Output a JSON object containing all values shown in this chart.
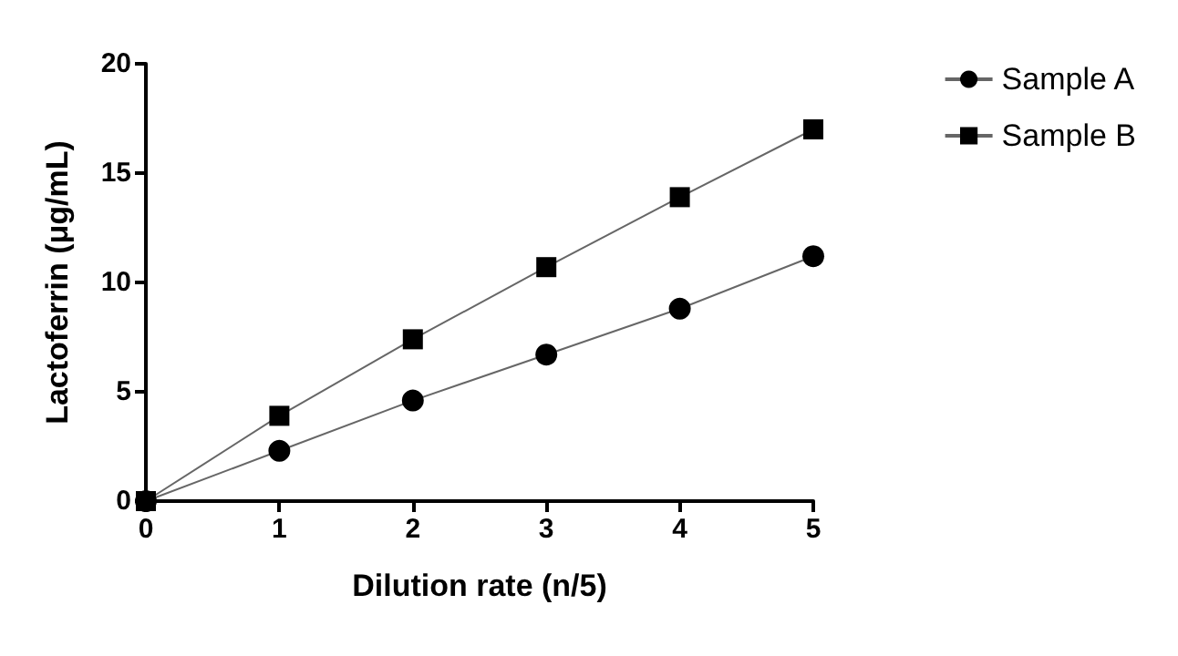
{
  "chart_data": {
    "type": "line",
    "xlabel": "Dilution rate (n/5)",
    "ylabel": "Lactoferrin (μg/mL)",
    "x": [
      0,
      1,
      2,
      3,
      4,
      5
    ],
    "series": [
      {
        "name": "Sample A",
        "color": "#000000",
        "marker": "circle",
        "values": [
          0,
          2.3,
          4.6,
          6.7,
          8.8,
          11.2
        ]
      },
      {
        "name": "Sample B",
        "color": "#000000",
        "marker": "square",
        "values": [
          0,
          3.9,
          7.4,
          10.7,
          13.9,
          17
        ]
      }
    ],
    "xlim": [
      0,
      5
    ],
    "xticks": [
      0,
      1,
      2,
      3,
      4,
      5
    ],
    "ylim": [
      0,
      20
    ],
    "yticks": [
      0,
      5,
      10,
      15,
      20
    ],
    "grid": false,
    "legend": "right",
    "line_style": "solid"
  }
}
